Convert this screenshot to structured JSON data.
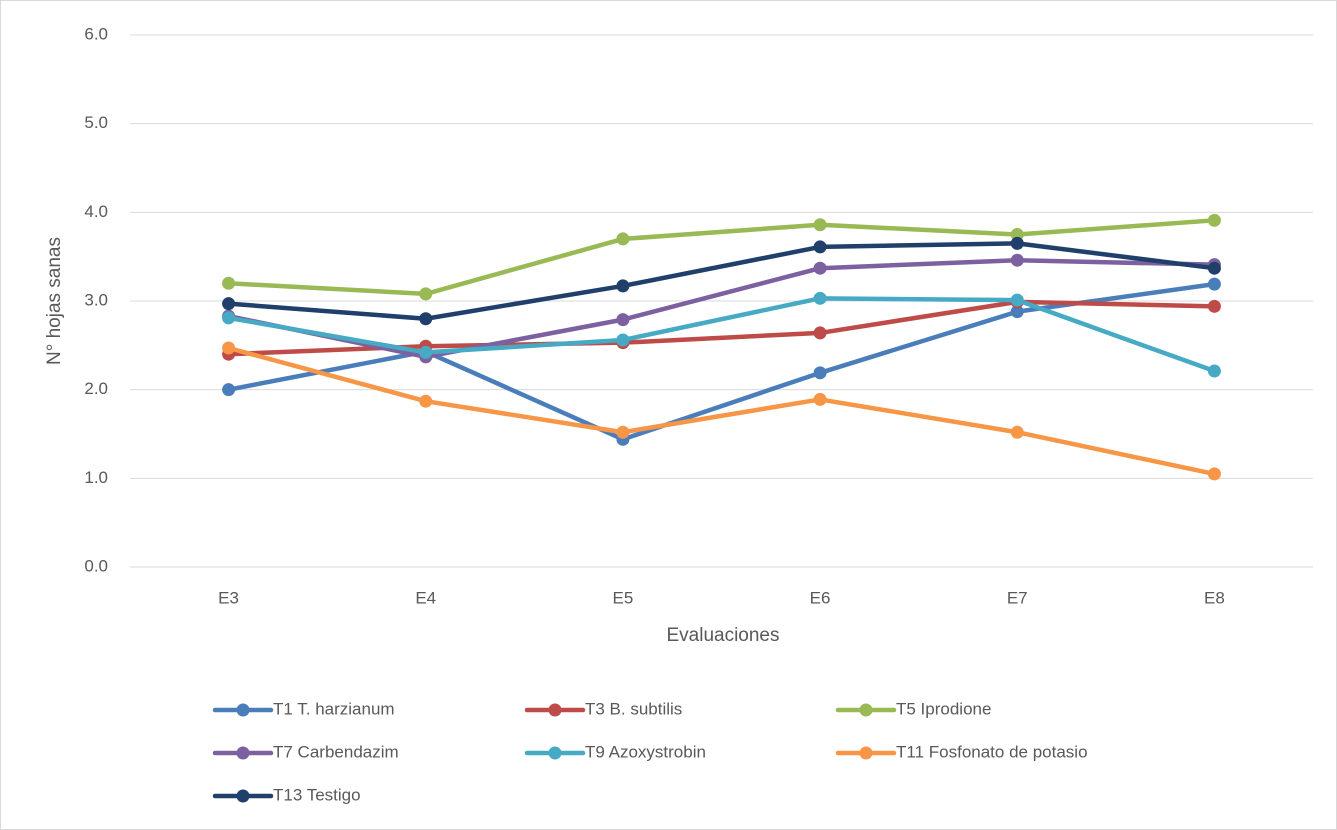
{
  "chart_data": {
    "type": "line",
    "x_label": "Evaluaciones",
    "y_label": "N° hojas sanas",
    "categories": [
      "E3",
      "E4",
      "E5",
      "E6",
      "E7",
      "E8"
    ],
    "ylim": [
      0,
      6
    ],
    "yticks": [
      {
        "value": 0,
        "label": "0.0"
      },
      {
        "value": 1,
        "label": "1.0"
      },
      {
        "value": 2,
        "label": "2.0"
      },
      {
        "value": 3,
        "label": "3.0"
      },
      {
        "value": 4,
        "label": "4.0"
      },
      {
        "value": 5,
        "label": "5.0"
      },
      {
        "value": 6,
        "label": "6.0"
      }
    ],
    "grid": true,
    "legend": "bottom",
    "series": [
      {
        "name": "T1 T. harzianum",
        "color": "#4a7ebb",
        "values": [
          2.0,
          2.43,
          1.44,
          2.19,
          2.88,
          3.19
        ]
      },
      {
        "name": "T3 B. subtilis",
        "color": "#be4b48",
        "values": [
          2.4,
          2.49,
          2.53,
          2.64,
          2.99,
          2.94
        ]
      },
      {
        "name": "T5 Iprodione",
        "color": "#98b954",
        "values": [
          3.2,
          3.08,
          3.7,
          3.86,
          3.75,
          3.91
        ]
      },
      {
        "name": "T7 Carbendazim",
        "color": "#7d60a0",
        "values": [
          2.83,
          2.37,
          2.79,
          3.37,
          3.46,
          3.41
        ]
      },
      {
        "name": "T9 Azoxystrobin",
        "color": "#46aac5",
        "values": [
          2.81,
          2.42,
          2.56,
          3.03,
          3.01,
          2.21
        ]
      },
      {
        "name": "T11 Fosfonato de potasio",
        "color": "#f79646",
        "values": [
          2.47,
          1.87,
          1.52,
          1.89,
          1.52,
          1.05
        ]
      },
      {
        "name": "T13 Testigo",
        "color": "#203f6b",
        "values": [
          2.97,
          2.8,
          3.17,
          3.61,
          3.65,
          3.37
        ]
      }
    ]
  }
}
